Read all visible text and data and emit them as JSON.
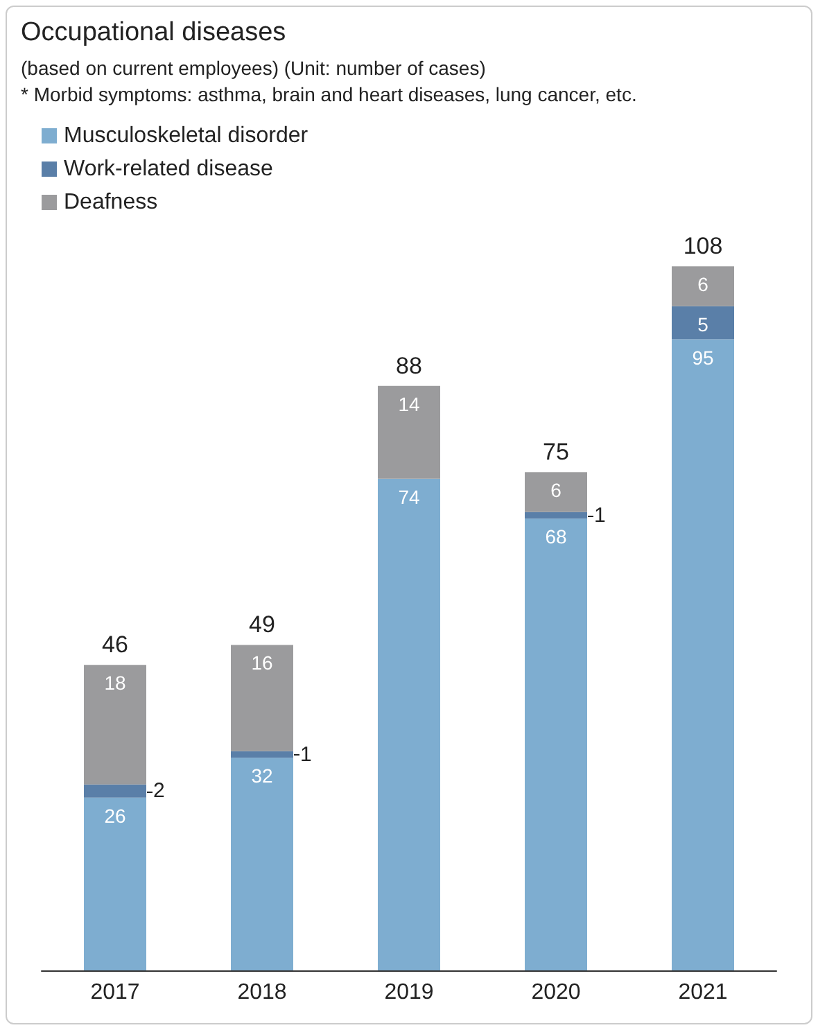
{
  "chart_data": {
    "type": "bar",
    "title": "Occupational diseases",
    "subtitle": "(based on current employees) (Unit: number of cases)",
    "annotations": [
      "* Morbid symptoms: asthma, brain and heart diseases, lung cancer, etc."
    ],
    "categories": [
      "2017",
      "2018",
      "2019",
      "2020",
      "2021"
    ],
    "stacked": true,
    "legend": "top left",
    "grid": false,
    "tick_labels": "x",
    "series": [
      {
        "name": "Musculoskeletal disorder",
        "color": "#7eadd0",
        "values": [
          26,
          32,
          74,
          68,
          95
        ],
        "value_labels": [
          "26",
          "32",
          "74",
          "68",
          "95"
        ]
      },
      {
        "name": "Work-related disease",
        "color": "#5a7fa8",
        "values": [
          2,
          1,
          0,
          1,
          5
        ],
        "value_labels": [
          "2",
          "1",
          null,
          "1",
          "5"
        ]
      },
      {
        "name": "Deafness",
        "color": "#9b9b9d",
        "values": [
          18,
          16,
          14,
          6,
          6
        ],
        "value_labels": [
          "18",
          "16",
          "14",
          "6",
          "6"
        ]
      }
    ],
    "totals": [
      "46",
      "49",
      "88",
      "75",
      "108"
    ]
  }
}
